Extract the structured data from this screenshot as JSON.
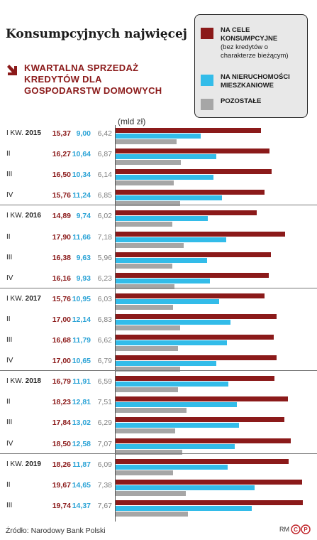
{
  "title": "Konsumpcyjnych najwięcej",
  "subtitle": "KWARTALNA SPRZEDAŻ KREDYTÓW DLA GOSPODARSTW DOMOWYCH",
  "legend": {
    "consumer_main": "NA CELE KONSUMPCYJNE",
    "consumer_note": "(bez kredytów o charakterze bieżącym)",
    "realestate": "NA NIERUCHOMOŚCI MIESZKANIOWE",
    "other": "POZOSTAŁE"
  },
  "unit": "(mld zł)",
  "source": "Źródło: Narodowy Bank Polski",
  "logo_text": "RM",
  "colors": {
    "consumer": "#8b1a1a",
    "realestate": "#33bce9",
    "other": "#a6a6a6"
  },
  "chart_data": {
    "type": "bar",
    "orientation": "horizontal",
    "title": "KWARTALNA SPRZEDAŻ KREDYTÓW DLA GOSPODARSTW DOMOWYCH",
    "ylabel": "(mld zł)",
    "xlim": [
      0,
      20
    ],
    "categories": [
      {
        "q": "I KW.",
        "year": "2015"
      },
      {
        "q": "II",
        "year": ""
      },
      {
        "q": "III",
        "year": ""
      },
      {
        "q": "IV",
        "year": ""
      },
      {
        "q": "I KW.",
        "year": "2016"
      },
      {
        "q": "II",
        "year": ""
      },
      {
        "q": "III",
        "year": ""
      },
      {
        "q": "IV",
        "year": ""
      },
      {
        "q": "I KW.",
        "year": "2017"
      },
      {
        "q": "II",
        "year": ""
      },
      {
        "q": "III",
        "year": ""
      },
      {
        "q": "IV",
        "year": ""
      },
      {
        "q": "I KW.",
        "year": "2018"
      },
      {
        "q": "II",
        "year": ""
      },
      {
        "q": "III",
        "year": ""
      },
      {
        "q": "IV",
        "year": ""
      },
      {
        "q": "I KW.",
        "year": "2019"
      },
      {
        "q": "II",
        "year": ""
      },
      {
        "q": "III",
        "year": ""
      }
    ],
    "series": [
      {
        "name": "NA CELE KONSUMPCYJNE",
        "values": [
          15.37,
          16.27,
          16.5,
          15.76,
          14.89,
          17.9,
          16.38,
          16.16,
          15.76,
          17.0,
          16.68,
          17.0,
          16.79,
          18.23,
          17.84,
          18.5,
          18.26,
          19.67,
          19.74
        ],
        "labels": [
          "15,37",
          "16,27",
          "16,50",
          "15,76",
          "14,89",
          "17,90",
          "16,38",
          "16,16",
          "15,76",
          "17,00",
          "16,68",
          "17,00",
          "16,79",
          "18,23",
          "17,84",
          "18,50",
          "18,26",
          "19,67",
          "19,74"
        ]
      },
      {
        "name": "NA NIERUCHOMOŚCI MIESZKANIOWE",
        "values": [
          9.0,
          10.64,
          10.34,
          11.24,
          9.74,
          11.66,
          9.63,
          9.93,
          10.95,
          12.14,
          11.79,
          10.65,
          11.91,
          12.81,
          13.02,
          12.58,
          11.87,
          14.65,
          14.37
        ],
        "labels": [
          "9,00",
          "10,64",
          "10,34",
          "11,24",
          "9,74",
          "11,66",
          "9,63",
          "9,93",
          "10,95",
          "12,14",
          "11,79",
          "10,65",
          "11,91",
          "12,81",
          "13,02",
          "12,58",
          "11,87",
          "14,65",
          "14,37"
        ]
      },
      {
        "name": "POZOSTAŁE",
        "values": [
          6.42,
          6.87,
          6.14,
          6.85,
          6.02,
          7.18,
          5.96,
          6.23,
          6.03,
          6.83,
          6.62,
          6.79,
          6.59,
          7.51,
          6.29,
          7.07,
          6.09,
          7.38,
          7.67
        ],
        "labels": [
          "6,42",
          "6,87",
          "6,14",
          "6,85",
          "6,02",
          "7,18",
          "5,96",
          "6,23",
          "6,03",
          "6,83",
          "6,62",
          "6,79",
          "6,59",
          "7,51",
          "6,29",
          "7,07",
          "6,09",
          "7,38",
          "7,67"
        ]
      }
    ]
  }
}
